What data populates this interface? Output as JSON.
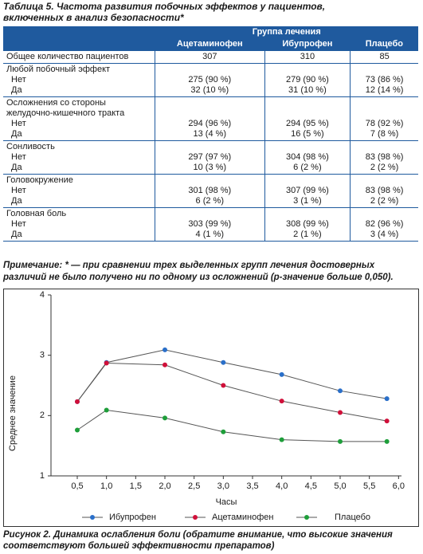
{
  "table": {
    "title": "Таблица 5. Частота развития побочных эффектов у пациентов, включенных в анализ безопасности*",
    "group_header": "Группа лечения",
    "columns": [
      "Ацетаминофен",
      "Ибупрофен",
      "Плацебо"
    ],
    "rows": [
      {
        "label": "Общее количество пациентов",
        "values": [
          307,
          310,
          85
        ]
      },
      {
        "label": "Любой побочный эффект",
        "subrows": [
          {
            "label": "Нет",
            "values": [
              "275 (90 %)",
              "279 (90 %)",
              "73 (86 %)"
            ]
          },
          {
            "label": "Да",
            "values": [
              "32 (10 %)",
              "31 (10 %)",
              "12 (14 %)"
            ]
          }
        ]
      },
      {
        "label": "Осложнения со стороны желудочно-кишечного тракта",
        "subrows": [
          {
            "label": "Нет",
            "values": [
              "294 (96 %)",
              "294 (95 %)",
              "78 (92 %)"
            ]
          },
          {
            "label": "Да",
            "values": [
              "13 (4 %)",
              "16 (5 %)",
              "7 (8 %)"
            ]
          }
        ]
      },
      {
        "label": "Сонливость",
        "subrows": [
          {
            "label": "Нет",
            "values": [
              "297 (97 %)",
              "304 (98 %)",
              "83 (98 %)"
            ]
          },
          {
            "label": "Да",
            "values": [
              "10 (3 %)",
              "6 (2 %)",
              "2 (2 %)"
            ]
          }
        ]
      },
      {
        "label": "Головокружение",
        "subrows": [
          {
            "label": "Нет",
            "values": [
              "301 (98 %)",
              "307 (99 %)",
              "83 (98 %)"
            ]
          },
          {
            "label": "Да",
            "values": [
              "6 (2 %)",
              "3 (1 %)",
              "2 (2 %)"
            ]
          }
        ]
      },
      {
        "label": "Головная боль",
        "subrows": [
          {
            "label": "Нет",
            "values": [
              "303 (99 %)",
              "308 (99 %)",
              "82 (96 %)"
            ]
          },
          {
            "label": "Да",
            "values": [
              "4 (1 %)",
              "2 (1 %)",
              "3 (4 %)"
            ]
          }
        ]
      }
    ]
  },
  "note": {
    "label": "Примечание:",
    "text": "* — при сравнении трех выделенных групп лечения достоверных различий не было получено ни по одному из осложнений (p-значение больше 0,050)."
  },
  "chart_data": {
    "type": "line",
    "x_label": "Часы",
    "y_label": "Среднее значение",
    "x": [
      0.5,
      1.0,
      2.0,
      3.0,
      4.0,
      5.0,
      5.8
    ],
    "series": [
      {
        "name": "Ибупрофен",
        "color": "#2a6fc9",
        "values": [
          2.23,
          2.88,
          3.09,
          2.88,
          2.68,
          2.41,
          2.28
        ]
      },
      {
        "name": "Ацетаминофен",
        "color": "#d0103a",
        "values": [
          2.23,
          2.87,
          2.84,
          2.5,
          2.24,
          2.05,
          1.91
        ]
      },
      {
        "name": "Плацебо",
        "color": "#1e9e3a",
        "values": [
          1.76,
          2.09,
          1.96,
          1.73,
          1.6,
          1.57,
          1.57
        ]
      }
    ],
    "xlim": [
      0.05,
      6.05
    ],
    "ylim": [
      1,
      4
    ],
    "xticks": [
      {
        "value": 0.5,
        "label": "0,5"
      },
      {
        "value": 1.0,
        "label": "1,0"
      },
      {
        "value": 1.5,
        "label": "1,5"
      },
      {
        "value": 2.0,
        "label": "2,0"
      },
      {
        "value": 2.5,
        "label": "2,5"
      },
      {
        "value": 3.0,
        "label": "3,0"
      },
      {
        "value": 3.5,
        "label": "3,5"
      },
      {
        "value": 4.0,
        "label": "4,0"
      },
      {
        "value": 4.5,
        "label": "4,5"
      },
      {
        "value": 5.0,
        "label": "5,0"
      },
      {
        "value": 5.5,
        "label": "5,5"
      },
      {
        "value": 6.0,
        "label": "6,0"
      }
    ],
    "yticks": [
      1,
      2,
      3,
      4
    ],
    "grid": false
  },
  "caption": "Рисунок 2. Динамика ослабления боли (обратите внимание, что высокие значения соответствуют большей эффективности препаратов)"
}
